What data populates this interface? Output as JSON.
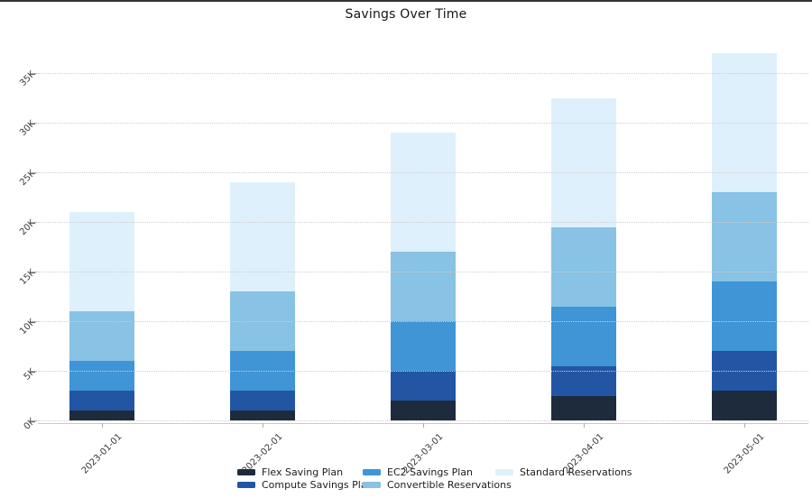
{
  "window": {
    "top_border_color": "#333333"
  },
  "chart_data": {
    "type": "bar",
    "stacked": true,
    "title": "Savings Over Time",
    "categories": [
      "2023-01-01",
      "2023-02-01",
      "2023-03-01",
      "2023-04-01",
      "2023-05-01"
    ],
    "series": [
      {
        "name": "Flex Saving Plan",
        "color": "#1d2b3d",
        "values": [
          1000,
          1000,
          2000,
          2500,
          3000
        ]
      },
      {
        "name": "Compute Savings Plan",
        "color": "#2256a5",
        "values": [
          2000,
          2000,
          3000,
          3000,
          4000
        ]
      },
      {
        "name": "EC2 Savings Plan",
        "color": "#3f95d6",
        "values": [
          3000,
          4000,
          5000,
          6000,
          7000
        ]
      },
      {
        "name": "Convertible Reservations",
        "color": "#88c2e4",
        "values": [
          5000,
          6000,
          7000,
          8000,
          9000
        ]
      },
      {
        "name": "Standard Reservations",
        "color": "#def0fb",
        "values": [
          10000,
          11000,
          12000,
          13000,
          14000
        ]
      }
    ],
    "totals": [
      21000,
      24000,
      29000,
      32500,
      37000
    ],
    "xlabel": "",
    "ylabel": "",
    "ylim": [
      0,
      38500
    ],
    "y_ticks": [
      0,
      5000,
      10000,
      15000,
      20000,
      25000,
      30000,
      35000
    ],
    "y_tick_labels": [
      "0K",
      "5K",
      "10K",
      "15K",
      "20K",
      "25K",
      "30K",
      "35K"
    ],
    "grid": "horizontal dotted",
    "gridline_color": "#cecece",
    "axis_line_color": "#c9c9c9",
    "tick_label_rotation_deg": 45,
    "legend_position": "bottom"
  }
}
